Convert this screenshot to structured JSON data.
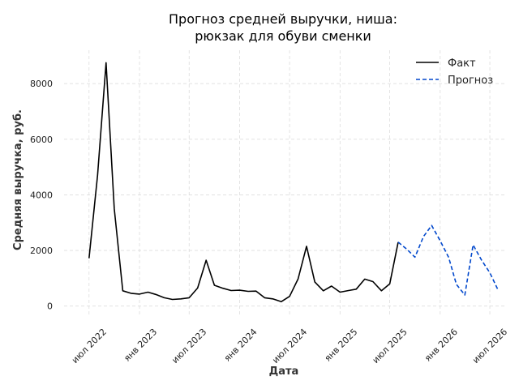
{
  "chart_data": {
    "type": "line",
    "title_lines": [
      "Прогноз средней выручки, ниша:",
      "рюкзак для обуви сменки"
    ],
    "xlabel": "Дата",
    "ylabel": "Средняя выручка, руб.",
    "ylim": [
      -300,
      9200
    ],
    "xlim": [
      "2022-04-01",
      "2026-09-01"
    ],
    "yticks": [
      0,
      2000,
      4000,
      6000,
      8000
    ],
    "xticks": [
      {
        "date": "2022-07-01",
        "label": "июл 2022"
      },
      {
        "date": "2023-01-01",
        "label": "янв 2023"
      },
      {
        "date": "2023-07-01",
        "label": "июл 2023"
      },
      {
        "date": "2024-01-01",
        "label": "янв 2024"
      },
      {
        "date": "2024-07-01",
        "label": "июл 2024"
      },
      {
        "date": "2025-01-01",
        "label": "янв 2025"
      },
      {
        "date": "2025-07-01",
        "label": "июл 2025"
      },
      {
        "date": "2026-01-01",
        "label": "янв 2026"
      },
      {
        "date": "2026-07-01",
        "label": "июл 2026"
      }
    ],
    "grid": true,
    "legend_position": "top-right",
    "series": [
      {
        "name": "Факт",
        "color": "#000000",
        "style": "solid",
        "points": [
          [
            "2022-07-01",
            1720
          ],
          [
            "2022-08-01",
            4700
          ],
          [
            "2022-09-01",
            8750
          ],
          [
            "2022-10-01",
            3500
          ],
          [
            "2022-11-01",
            550
          ],
          [
            "2022-12-01",
            460
          ],
          [
            "2023-01-01",
            430
          ],
          [
            "2023-02-01",
            500
          ],
          [
            "2023-03-01",
            420
          ],
          [
            "2023-04-01",
            300
          ],
          [
            "2023-05-01",
            240
          ],
          [
            "2023-06-01",
            260
          ],
          [
            "2023-07-01",
            300
          ],
          [
            "2023-08-01",
            650
          ],
          [
            "2023-09-01",
            1650
          ],
          [
            "2023-10-01",
            750
          ],
          [
            "2023-11-01",
            640
          ],
          [
            "2023-12-01",
            560
          ],
          [
            "2024-01-01",
            570
          ],
          [
            "2024-02-01",
            530
          ],
          [
            "2024-03-01",
            540
          ],
          [
            "2024-04-01",
            300
          ],
          [
            "2024-05-01",
            260
          ],
          [
            "2024-06-01",
            160
          ],
          [
            "2024-07-01",
            350
          ],
          [
            "2024-08-01",
            980
          ],
          [
            "2024-09-01",
            2150
          ],
          [
            "2024-10-01",
            870
          ],
          [
            "2024-11-01",
            550
          ],
          [
            "2024-12-01",
            720
          ],
          [
            "2025-01-01",
            500
          ],
          [
            "2025-02-01",
            560
          ],
          [
            "2025-03-01",
            610
          ],
          [
            "2025-04-01",
            970
          ],
          [
            "2025-05-01",
            880
          ],
          [
            "2025-06-01",
            550
          ],
          [
            "2025-07-01",
            800
          ],
          [
            "2025-08-01",
            2300
          ]
        ]
      },
      {
        "name": "Прогноз",
        "color": "#0047cc",
        "style": "dashed",
        "points": [
          [
            "2025-08-01",
            2300
          ],
          [
            "2025-09-01",
            2050
          ],
          [
            "2025-10-01",
            1760
          ],
          [
            "2025-11-01",
            2500
          ],
          [
            "2025-12-01",
            2900
          ],
          [
            "2026-01-01",
            2350
          ],
          [
            "2026-02-01",
            1750
          ],
          [
            "2026-03-01",
            780
          ],
          [
            "2026-04-01",
            400
          ],
          [
            "2026-05-01",
            2200
          ],
          [
            "2026-06-01",
            1650
          ],
          [
            "2026-07-01",
            1200
          ],
          [
            "2026-08-01",
            560
          ]
        ]
      }
    ]
  }
}
